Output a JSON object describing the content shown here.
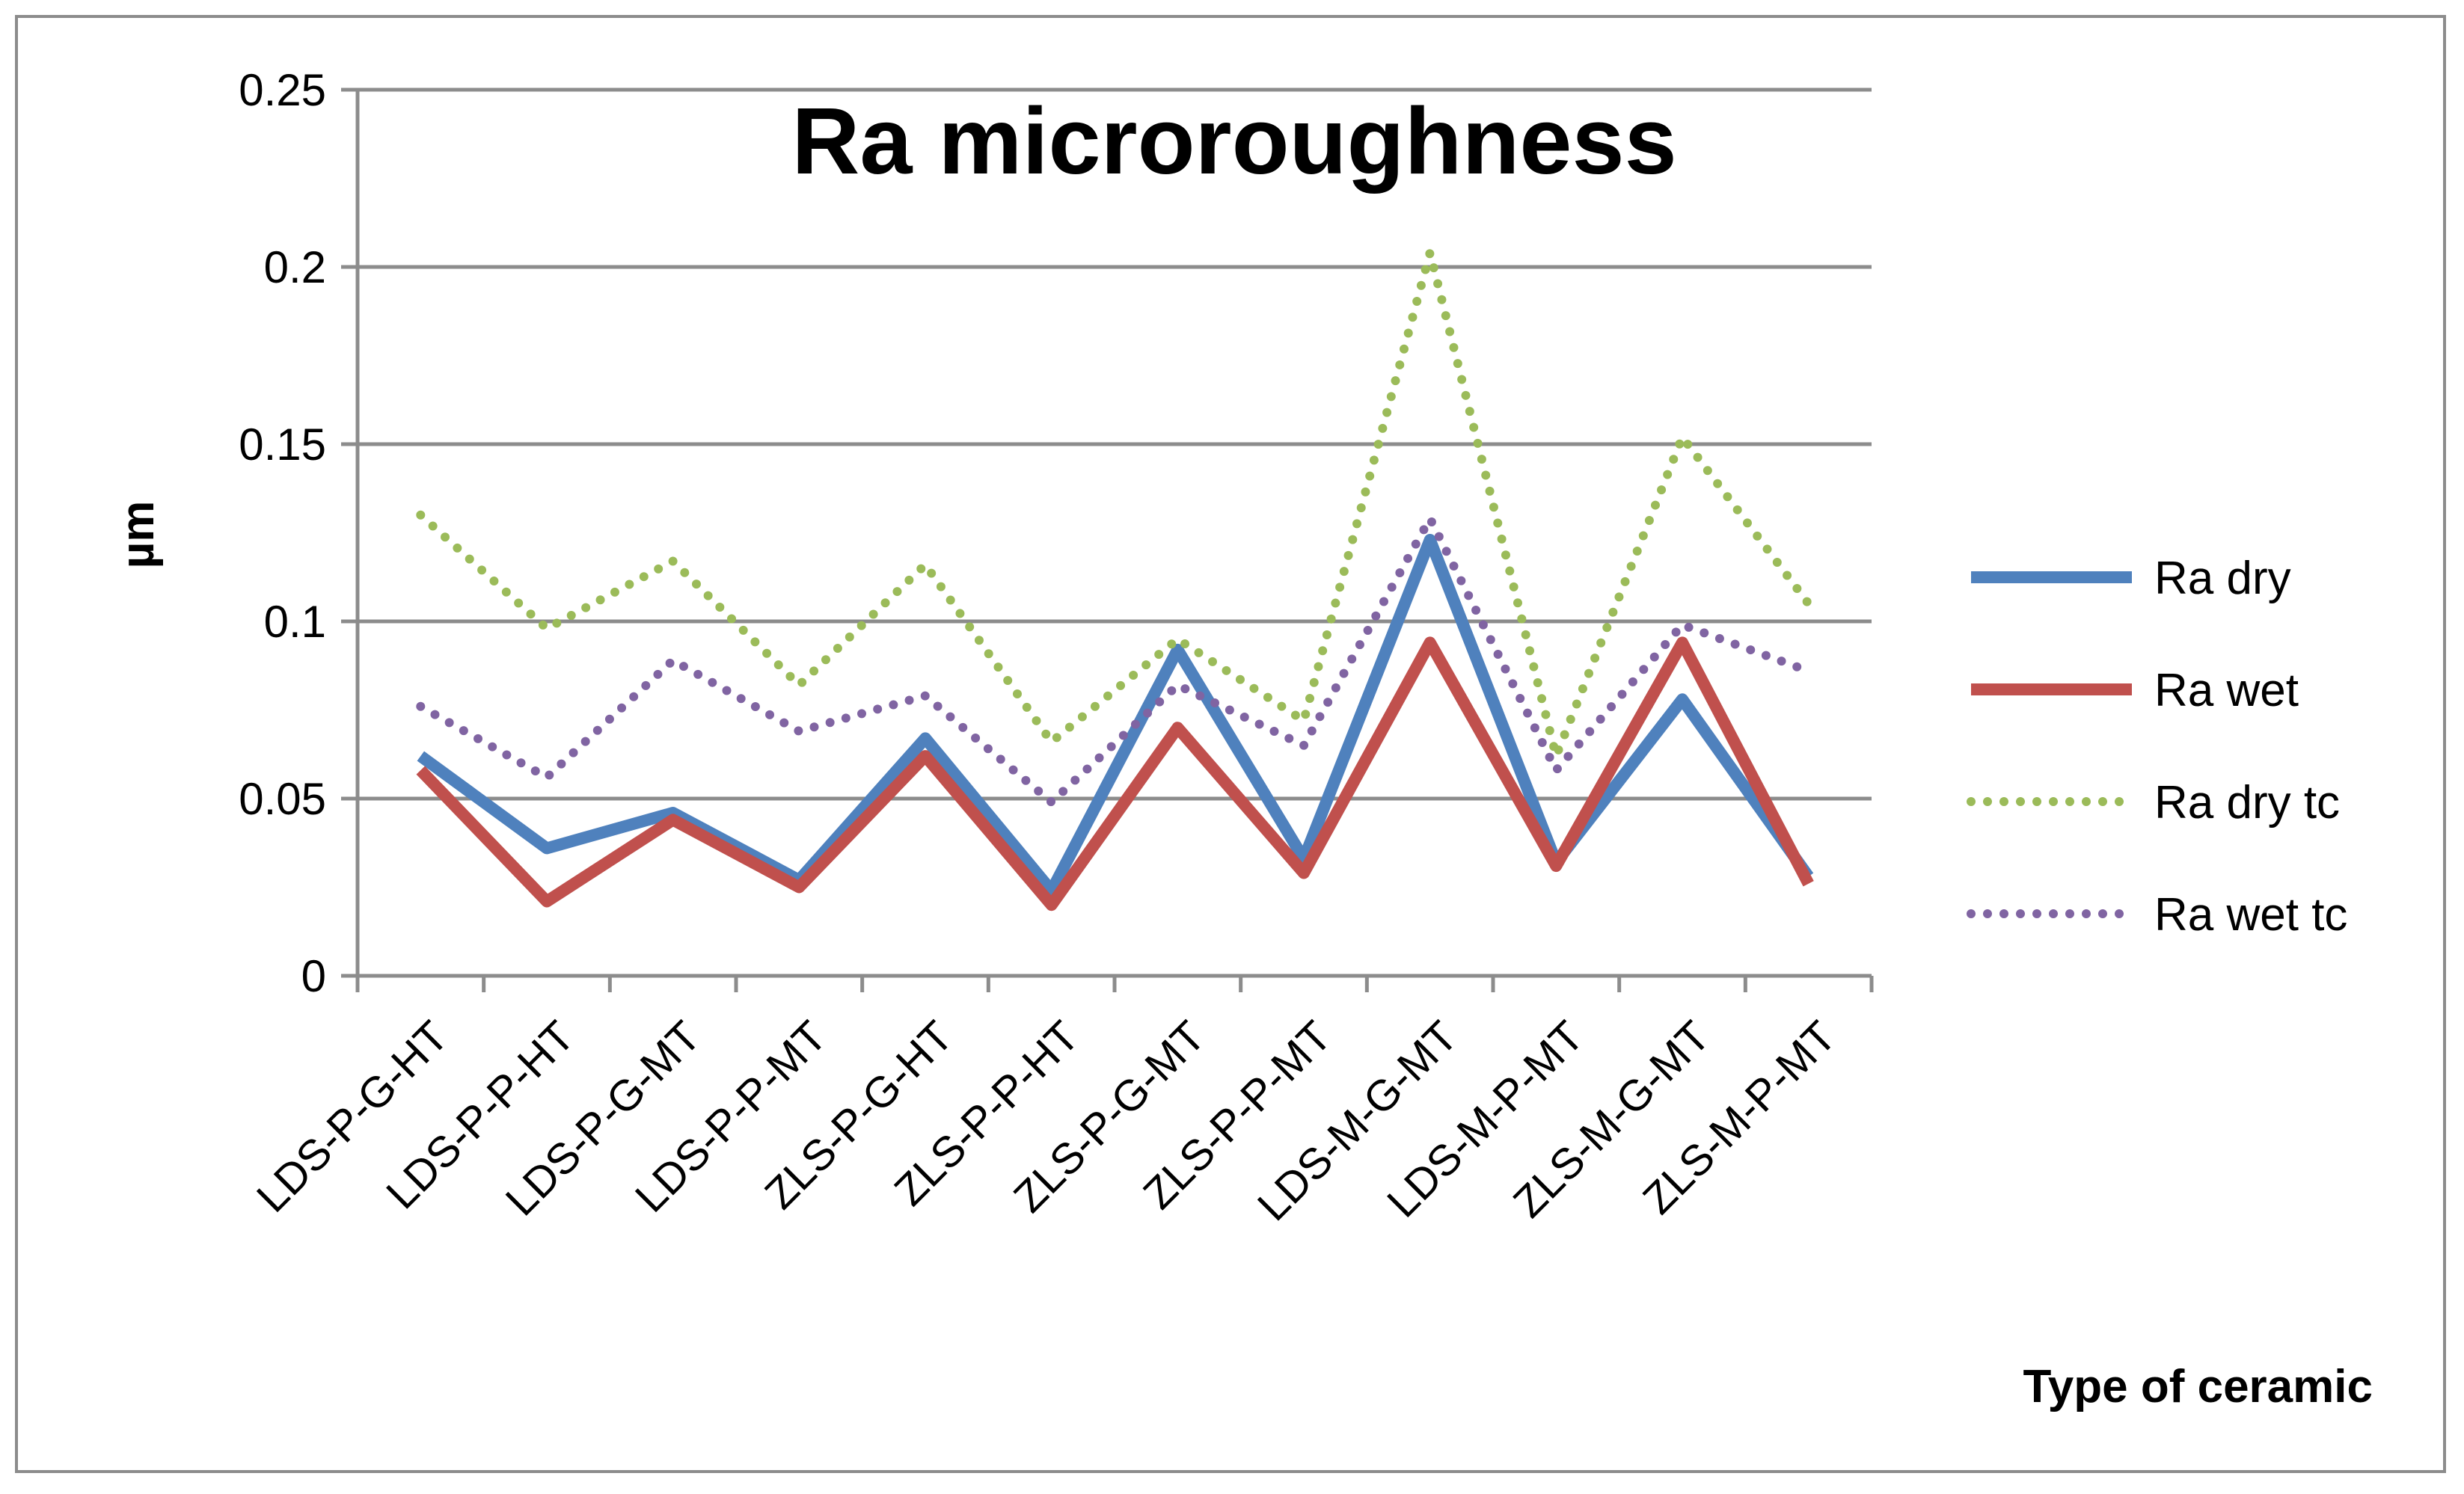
{
  "chart_data": {
    "type": "line",
    "title": "Ra microroughness",
    "xlabel": "Type of ceramic",
    "ylabel": "µm",
    "ylim": [
      0,
      0.25
    ],
    "yticks": [
      "0",
      "0.05",
      "0.1",
      "0.15",
      "0.2",
      "0.25"
    ],
    "categories": [
      "LDS-P-G-HT",
      "LDS-P-P-HT",
      "LDS-P-G-MT",
      "LDS-P-P-MT",
      "ZLS-P-G-HT",
      "ZLS-P-P-HT",
      "ZLS-P-G-MT",
      "ZLS-P-P-MT",
      "LDS-M-G-MT",
      "LDS-M-P-MT",
      "ZLS-M-G-MT",
      "ZLS-M-P-MT"
    ],
    "grid": true,
    "legend_position": "right",
    "series": [
      {
        "name": "Ra dry",
        "color": "#4f81bd",
        "style": "solid",
        "values": [
          0.062,
          0.036,
          0.046,
          0.027,
          0.067,
          0.024,
          0.092,
          0.033,
          0.123,
          0.032,
          0.078,
          0.028
        ]
      },
      {
        "name": "Ra wet",
        "color": "#c0504d",
        "style": "solid",
        "values": [
          0.058,
          0.021,
          0.044,
          0.025,
          0.062,
          0.02,
          0.07,
          0.029,
          0.094,
          0.031,
          0.094,
          0.026
        ]
      },
      {
        "name": "Ra dry tc",
        "color": "#9bbb59",
        "style": "dotted",
        "values": [
          0.13,
          0.098,
          0.117,
          0.082,
          0.116,
          0.066,
          0.095,
          0.072,
          0.204,
          0.062,
          0.152,
          0.105
        ]
      },
      {
        "name": "Ra wet tc",
        "color": "#8064a2",
        "style": "dotted",
        "values": [
          0.076,
          0.056,
          0.089,
          0.069,
          0.079,
          0.049,
          0.082,
          0.065,
          0.129,
          0.058,
          0.099,
          0.086
        ]
      }
    ]
  }
}
